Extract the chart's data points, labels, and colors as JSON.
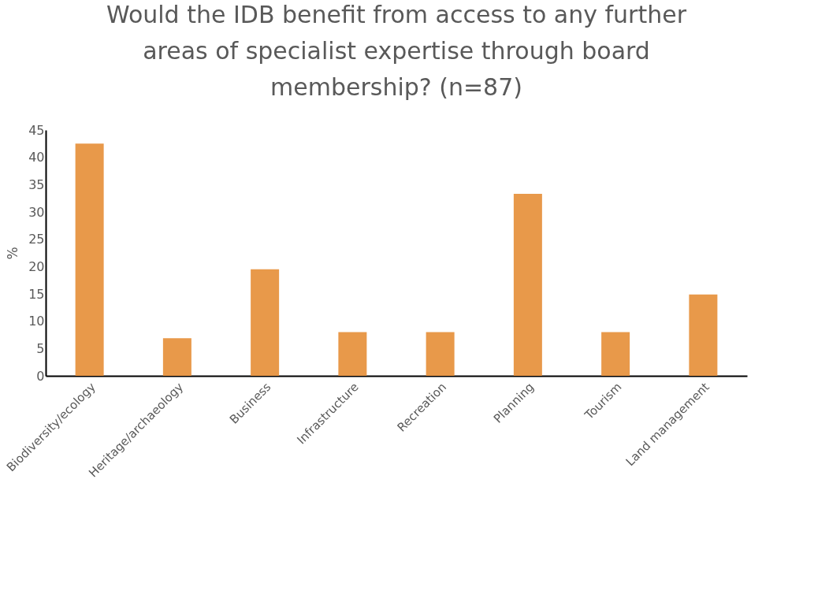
{
  "chart_data": {
    "type": "bar",
    "title": "Would the IDB benefit from access to any further areas of specialist expertise through board membership? (n=87)",
    "ylabel": "%",
    "categories": [
      "Biodiversity/ecology",
      "Heritage/archaeology",
      "Business",
      "Infrastructure",
      "Recreation",
      "Planning",
      "Tourism",
      "Land management"
    ],
    "values": [
      42.5,
      6.9,
      19.5,
      8.0,
      8.0,
      33.3,
      8.0,
      14.9
    ],
    "color": "#e8994a",
    "ylim": [
      0,
      45
    ],
    "yticks": [
      0,
      5,
      10,
      15,
      20,
      25,
      30,
      35,
      40,
      45
    ],
    "grid": false
  }
}
